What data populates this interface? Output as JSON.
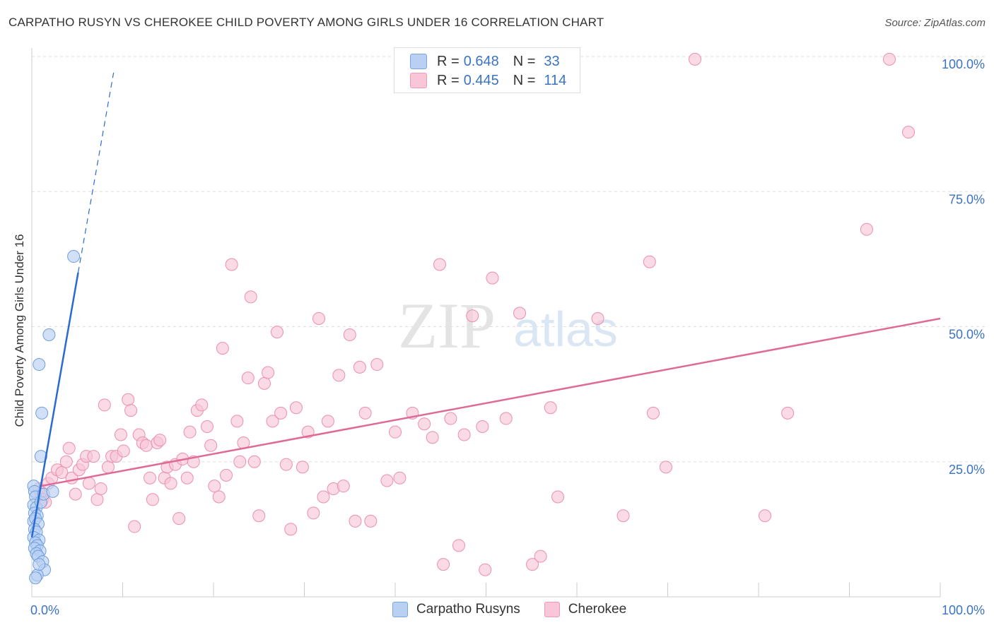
{
  "header": {
    "title": "CARPATHO RUSYN VS CHEROKEE CHILD POVERTY AMONG GIRLS UNDER 16 CORRELATION CHART",
    "source": "Source: ZipAtlas.com"
  },
  "watermark": {
    "zip": "ZIP",
    "atlas": "atlas"
  },
  "legend": {
    "rows": [
      {
        "r_label": "R =",
        "r_value": "0.648",
        "n_label": "N =",
        "n_value": "33",
        "color": "#b9d0f2",
        "border": "#7aa6e0"
      },
      {
        "r_label": "R =",
        "r_value": "0.445",
        "n_label": "N =",
        "n_value": "114",
        "color": "#f8c6d6",
        "border": "#ee9ab6"
      }
    ]
  },
  "colors": {
    "blue_fill": "#b9d0f2",
    "blue_stroke": "#6f9fdc",
    "blue_line": "#2a6bd1",
    "pink_fill": "#f8c6d6",
    "pink_stroke": "#ec8fae",
    "pink_line": "#e06a96",
    "tick_label": "#3a73c4",
    "grid": "#dddddd"
  },
  "chart_data": {
    "type": "scatter",
    "title": "CARPATHO RUSYN VS CHEROKEE CHILD POVERTY AMONG GIRLS UNDER 16 CORRELATION CHART",
    "xlabel": "",
    "ylabel": "Child Poverty Among Girls Under 16",
    "xlim": [
      0,
      100
    ],
    "ylim": [
      0,
      100
    ],
    "x_tick_labels": [
      {
        "value": 0,
        "label": "0.0%"
      },
      {
        "value": 100,
        "label": "100.0%"
      }
    ],
    "y_tick_labels": [
      {
        "value": 25,
        "label": "25.0%"
      },
      {
        "value": 50,
        "label": "50.0%"
      },
      {
        "value": 75,
        "label": "75.0%"
      },
      {
        "value": 100,
        "label": "100.0%"
      }
    ],
    "grid": "horizontal dashed",
    "legend_position": "top-center",
    "series": [
      {
        "name": "Carpatho Rusyns",
        "r": 0.648,
        "n": 33,
        "trend": {
          "x1": 0.0,
          "y1": 11.0,
          "x2": 5.1,
          "y2": 60.0,
          "dashed_to": [
            9.0,
            97.0
          ]
        },
        "points": [
          [
            0.2,
            20.5
          ],
          [
            0.3,
            19.5
          ],
          [
            0.4,
            18.5
          ],
          [
            0.2,
            17.0
          ],
          [
            0.5,
            16.5
          ],
          [
            0.3,
            15.5
          ],
          [
            0.6,
            15.0
          ],
          [
            0.2,
            14.0
          ],
          [
            0.4,
            14.5
          ],
          [
            0.7,
            13.5
          ],
          [
            0.3,
            12.5
          ],
          [
            0.5,
            12.0
          ],
          [
            0.2,
            11.0
          ],
          [
            0.8,
            10.5
          ],
          [
            0.4,
            10.0
          ],
          [
            0.6,
            9.5
          ],
          [
            0.3,
            9.0
          ],
          [
            0.9,
            8.5
          ],
          [
            0.5,
            8.0
          ],
          [
            0.7,
            7.5
          ],
          [
            1.2,
            6.5
          ],
          [
            1.4,
            5.0
          ],
          [
            0.6,
            4.0
          ],
          [
            0.4,
            3.5
          ],
          [
            0.8,
            6.0
          ],
          [
            1.0,
            17.5
          ],
          [
            1.3,
            19.0
          ],
          [
            2.3,
            19.5
          ],
          [
            1.0,
            26.0
          ],
          [
            1.1,
            34.0
          ],
          [
            0.8,
            43.0
          ],
          [
            1.9,
            48.5
          ],
          [
            4.6,
            63.0
          ]
        ]
      },
      {
        "name": "Cherokee",
        "r": 0.445,
        "n": 114,
        "trend": {
          "x1": 1.0,
          "y1": 20.5,
          "x2": 100.0,
          "y2": 51.5
        },
        "points": [
          [
            0.8,
            20.0
          ],
          [
            1.0,
            19.0
          ],
          [
            1.2,
            18.0
          ],
          [
            1.5,
            17.5
          ],
          [
            1.8,
            21.0
          ],
          [
            2.2,
            22.0
          ],
          [
            2.8,
            23.5
          ],
          [
            3.3,
            23.0
          ],
          [
            3.8,
            25.0
          ],
          [
            4.1,
            27.5
          ],
          [
            4.4,
            22.0
          ],
          [
            4.8,
            19.0
          ],
          [
            5.2,
            23.5
          ],
          [
            5.6,
            24.5
          ],
          [
            6.0,
            26.0
          ],
          [
            6.3,
            21.0
          ],
          [
            6.8,
            26.0
          ],
          [
            7.2,
            18.0
          ],
          [
            7.6,
            20.0
          ],
          [
            8.0,
            35.5
          ],
          [
            8.4,
            24.0
          ],
          [
            8.8,
            26.0
          ],
          [
            9.3,
            26.0
          ],
          [
            9.8,
            30.0
          ],
          [
            10.1,
            27.0
          ],
          [
            10.6,
            36.5
          ],
          [
            10.9,
            34.5
          ],
          [
            11.3,
            13.0
          ],
          [
            11.8,
            30.0
          ],
          [
            12.2,
            28.5
          ],
          [
            12.6,
            28.0
          ],
          [
            13.0,
            22.0
          ],
          [
            13.3,
            18.0
          ],
          [
            13.8,
            28.5
          ],
          [
            14.1,
            29.0
          ],
          [
            14.6,
            22.0
          ],
          [
            14.9,
            24.0
          ],
          [
            15.3,
            21.0
          ],
          [
            15.8,
            24.5
          ],
          [
            16.2,
            14.5
          ],
          [
            16.6,
            25.5
          ],
          [
            17.1,
            22.0
          ],
          [
            17.4,
            30.5
          ],
          [
            17.8,
            25.0
          ],
          [
            18.2,
            34.5
          ],
          [
            18.7,
            35.5
          ],
          [
            19.3,
            31.5
          ],
          [
            19.7,
            28.0
          ],
          [
            20.1,
            20.5
          ],
          [
            20.6,
            18.5
          ],
          [
            21.0,
            46.0
          ],
          [
            21.4,
            22.5
          ],
          [
            22.0,
            61.5
          ],
          [
            22.6,
            32.5
          ],
          [
            22.9,
            25.0
          ],
          [
            23.3,
            28.5
          ],
          [
            23.8,
            40.5
          ],
          [
            24.1,
            55.5
          ],
          [
            24.5,
            25.0
          ],
          [
            25.0,
            15.0
          ],
          [
            25.6,
            39.5
          ],
          [
            26.0,
            41.5
          ],
          [
            26.5,
            32.5
          ],
          [
            27.0,
            49.0
          ],
          [
            27.4,
            34.0
          ],
          [
            28.0,
            24.5
          ],
          [
            28.5,
            12.5
          ],
          [
            29.1,
            35.0
          ],
          [
            29.8,
            24.0
          ],
          [
            30.4,
            30.5
          ],
          [
            31.0,
            15.5
          ],
          [
            31.6,
            51.5
          ],
          [
            32.1,
            18.5
          ],
          [
            32.6,
            32.5
          ],
          [
            33.2,
            20.0
          ],
          [
            33.8,
            41.0
          ],
          [
            34.3,
            20.5
          ],
          [
            35.0,
            48.5
          ],
          [
            35.6,
            14.0
          ],
          [
            36.1,
            42.5
          ],
          [
            36.7,
            34.0
          ],
          [
            37.3,
            14.0
          ],
          [
            38.0,
            43.0
          ],
          [
            39.1,
            21.5
          ],
          [
            40.0,
            30.5
          ],
          [
            40.5,
            22.0
          ],
          [
            41.9,
            34.0
          ],
          [
            43.2,
            32.0
          ],
          [
            44.1,
            29.5
          ],
          [
            44.9,
            61.5
          ],
          [
            45.3,
            6.0
          ],
          [
            46.1,
            33.0
          ],
          [
            47.0,
            9.5
          ],
          [
            47.6,
            30.0
          ],
          [
            48.5,
            52.0
          ],
          [
            49.6,
            31.5
          ],
          [
            49.9,
            5.0
          ],
          [
            50.7,
            59.0
          ],
          [
            52.2,
            33.0
          ],
          [
            53.7,
            52.5
          ],
          [
            55.1,
            6.0
          ],
          [
            56.0,
            7.5
          ],
          [
            57.1,
            35.0
          ],
          [
            57.9,
            18.5
          ],
          [
            62.3,
            51.5
          ],
          [
            65.1,
            15.0
          ],
          [
            68.0,
            62.0
          ],
          [
            68.4,
            34.0
          ],
          [
            69.8,
            24.0
          ],
          [
            73.0,
            99.5
          ],
          [
            80.7,
            15.0
          ],
          [
            83.2,
            34.0
          ],
          [
            91.9,
            68.0
          ],
          [
            94.4,
            99.5
          ],
          [
            96.5,
            86.0
          ]
        ]
      }
    ]
  },
  "bottom_legend": {
    "items": [
      {
        "label": "Carpatho Rusyns",
        "color": "#b9d0f2",
        "border": "#7aa6e0"
      },
      {
        "label": "Cherokee",
        "color": "#f8c6d6",
        "border": "#ee9ab6"
      }
    ]
  }
}
